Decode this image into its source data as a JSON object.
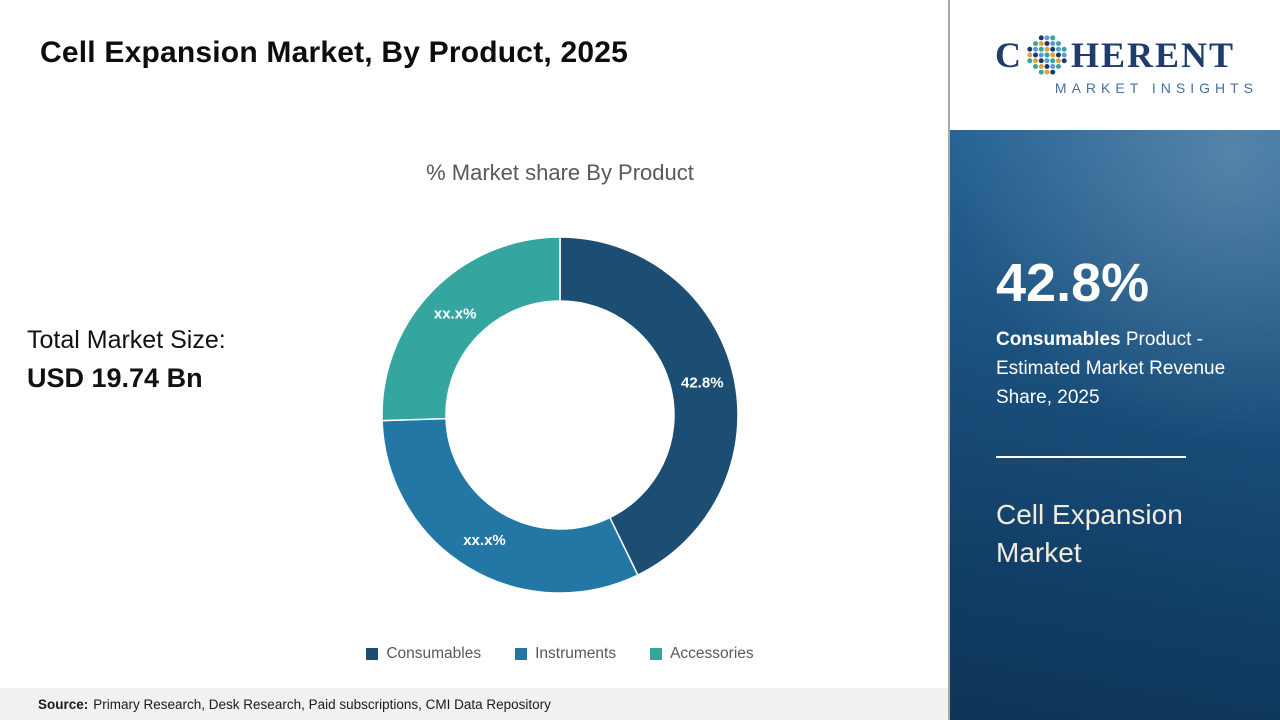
{
  "header": {
    "title": "Cell Expansion Market, By Product, 2025"
  },
  "main": {
    "total_market_label": "Total Market Size:",
    "total_market_value": "USD 19.74 Bn"
  },
  "chart_data": {
    "type": "pie",
    "donut": true,
    "title": "% Market share By Product",
    "categories": [
      "Consumables",
      "Instruments",
      "Accessories"
    ],
    "values": [
      42.8,
      31.7,
      25.5
    ],
    "labels": [
      "42.8%",
      "xx.x%",
      "xx.x%"
    ],
    "colors": [
      "#1c4e74",
      "#2377a4",
      "#35a5a0"
    ],
    "legend_position": "bottom",
    "start_angle_deg": 0
  },
  "sidebar": {
    "logo": {
      "prefix": "C",
      "suffix": "HERENT",
      "subtitle": "MARKET INSIGHTS"
    },
    "stat_value": "42.8%",
    "stat_bold": "Consumables",
    "stat_text": " Product - Estimated Market Revenue Share, 2025",
    "panel_title": "Cell Expansion Market"
  },
  "footer": {
    "source_label": "Source:",
    "source_text": "Primary Research, Desk Research, Paid subscriptions, CMI Data Repository"
  }
}
